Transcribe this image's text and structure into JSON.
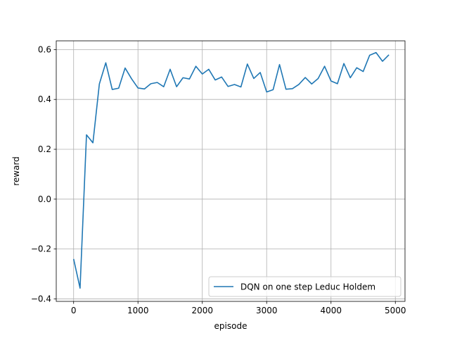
{
  "chart_data": {
    "type": "line",
    "title": "",
    "xlabel": "episode",
    "ylabel": "reward",
    "xlim": [
      -270,
      5150
    ],
    "ylim": [
      -0.41,
      0.635
    ],
    "xticks": [
      0,
      1000,
      2000,
      3000,
      4000,
      5000
    ],
    "xtick_labels": [
      "0",
      "1000",
      "2000",
      "3000",
      "4000",
      "5000"
    ],
    "yticks": [
      -0.4,
      -0.2,
      0.0,
      0.2,
      0.4,
      0.6
    ],
    "ytick_labels": [
      "−0.4",
      "−0.2",
      "0.0",
      "0.2",
      "0.4",
      "0.6"
    ],
    "grid": true,
    "legend_position": "lower-right",
    "series": [
      {
        "name": "DQN on one step Leduc Holdem",
        "color": "#1f77b4",
        "x": [
          0,
          100,
          200,
          300,
          400,
          500,
          600,
          700,
          800,
          900,
          1000,
          1100,
          1200,
          1300,
          1400,
          1500,
          1600,
          1700,
          1800,
          1900,
          2000,
          2100,
          2200,
          2300,
          2400,
          2500,
          2600,
          2700,
          2800,
          2900,
          3000,
          3100,
          3200,
          3300,
          3400,
          3500,
          3600,
          3700,
          3800,
          3900,
          4000,
          4100,
          4200,
          4300,
          4400,
          4500,
          4600,
          4700,
          4800,
          4900
        ],
        "y": [
          -0.24,
          -0.357,
          0.258,
          0.226,
          0.462,
          0.547,
          0.44,
          0.445,
          0.526,
          0.483,
          0.446,
          0.442,
          0.463,
          0.468,
          0.451,
          0.521,
          0.451,
          0.487,
          0.482,
          0.533,
          0.502,
          0.521,
          0.478,
          0.49,
          0.452,
          0.46,
          0.45,
          0.542,
          0.484,
          0.508,
          0.43,
          0.439,
          0.54,
          0.441,
          0.443,
          0.46,
          0.488,
          0.462,
          0.484,
          0.533,
          0.474,
          0.463,
          0.544,
          0.487,
          0.527,
          0.512,
          0.577,
          0.588,
          0.553,
          0.579
        ]
      }
    ]
  }
}
